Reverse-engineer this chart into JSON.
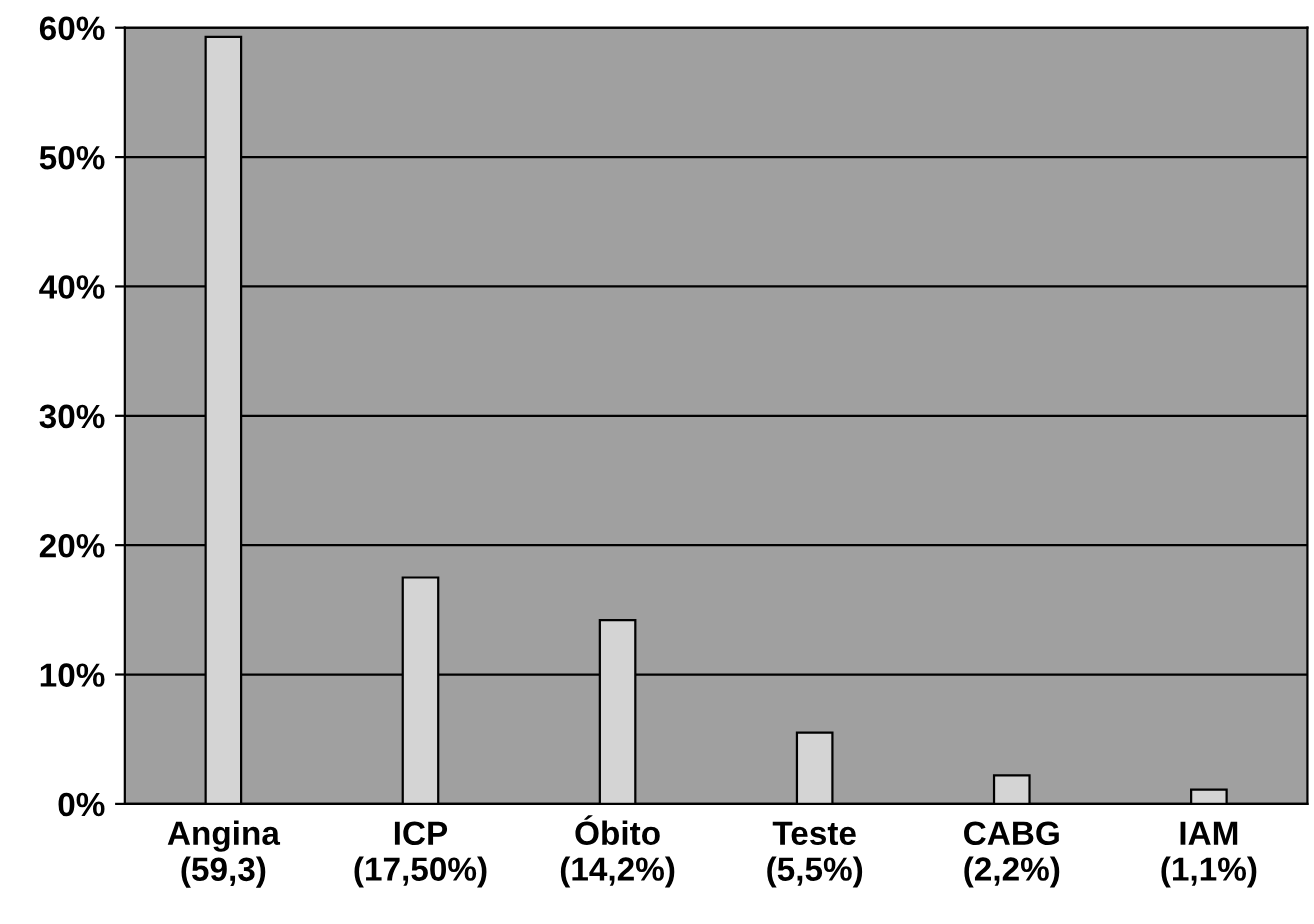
{
  "chart_data": {
    "type": "bar",
    "categories": [
      "Angina\n(59,3)",
      "ICP\n(17,50%)",
      "Óbito\n(14,2%)",
      "Teste\n(5,5%)",
      "CABG\n(2,2%)",
      "IAM\n(1,1%)"
    ],
    "values": [
      59.3,
      17.5,
      14.2,
      5.5,
      2.2,
      1.1
    ],
    "color": "#d4d4d4",
    "ylim": [
      0,
      60
    ],
    "yticks": [
      {
        "value": 0,
        "label": "0%"
      },
      {
        "value": 10,
        "label": "10%"
      },
      {
        "value": 20,
        "label": "20%"
      },
      {
        "value": 30,
        "label": "30%"
      },
      {
        "value": 40,
        "label": "40%"
      },
      {
        "value": 50,
        "label": "50%"
      },
      {
        "value": 60,
        "label": "60%"
      }
    ],
    "grid": "y",
    "legend": false
  }
}
